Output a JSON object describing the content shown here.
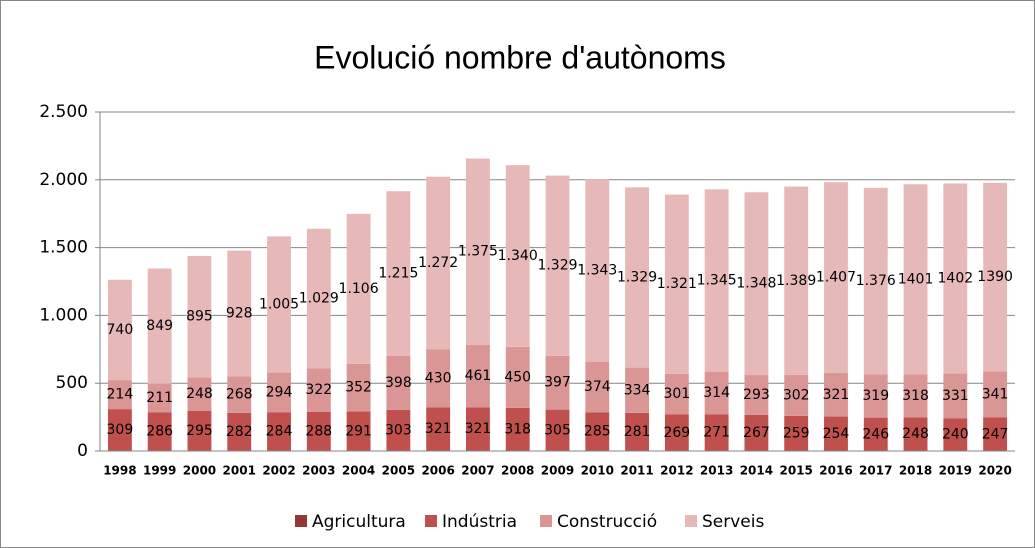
{
  "chart_data": {
    "type": "stacked_bar",
    "title": "Evolució nombre d'autònoms",
    "categories": [
      "1998",
      "1999",
      "2000",
      "2001",
      "2002",
      "2003",
      "2004",
      "2005",
      "2006",
      "2007",
      "2008",
      "2009",
      "2010",
      "2011",
      "2012",
      "2013",
      "2014",
      "2015",
      "2016",
      "2017",
      "2018",
      "2019",
      "2020"
    ],
    "series": [
      {
        "name": "Agricultura",
        "color": "#953735",
        "values": [
          null,
          null,
          null,
          null,
          null,
          null,
          null,
          null,
          null,
          null,
          null,
          null,
          null,
          null,
          null,
          null,
          null,
          null,
          null,
          null,
          null,
          null,
          null
        ]
      },
      {
        "name": "Indústria",
        "color": "#c0504d",
        "values": [
          309,
          286,
          295,
          282,
          284,
          288,
          291,
          303,
          321,
          321,
          318,
          305,
          285,
          281,
          269,
          271,
          267,
          259,
          254,
          246,
          248,
          240,
          247
        ]
      },
      {
        "name": "Construcció",
        "color": "#d99694",
        "values": [
          214,
          211,
          248,
          268,
          294,
          322,
          352,
          398,
          430,
          461,
          450,
          397,
          374,
          334,
          301,
          314,
          293,
          302,
          321,
          319,
          318,
          331,
          341
        ]
      },
      {
        "name": "Serveis",
        "color": "#e6b9b8",
        "values": [
          740,
          849,
          895,
          928,
          1005,
          1029,
          1106,
          1215,
          1272,
          1375,
          1340,
          1329,
          1343,
          1329,
          1321,
          1345,
          1348,
          1389,
          1407,
          1376,
          1401,
          1402,
          1390
        ],
        "value_labels": [
          "740",
          "849",
          "895",
          "928",
          "1.005",
          "1.029",
          "1.106",
          "1.215",
          "1.272",
          "1.375",
          "1.340",
          "1.329",
          "1.343",
          "1.329",
          "1.321",
          "1.345",
          "1.348",
          "1.389",
          "1.407",
          "1.376",
          "1401",
          "1402",
          "1390"
        ]
      }
    ],
    "ylim": [
      0,
      2500
    ],
    "yticks": [
      0,
      500,
      {
        "value": 1000,
        "label": "1.000"
      },
      {
        "value": 1500,
        "label": "1.500"
      },
      {
        "value": 2000,
        "label": "2.000"
      },
      {
        "value": 2500,
        "label": "2.500"
      }
    ],
    "grid": true,
    "legend": "bottom"
  }
}
